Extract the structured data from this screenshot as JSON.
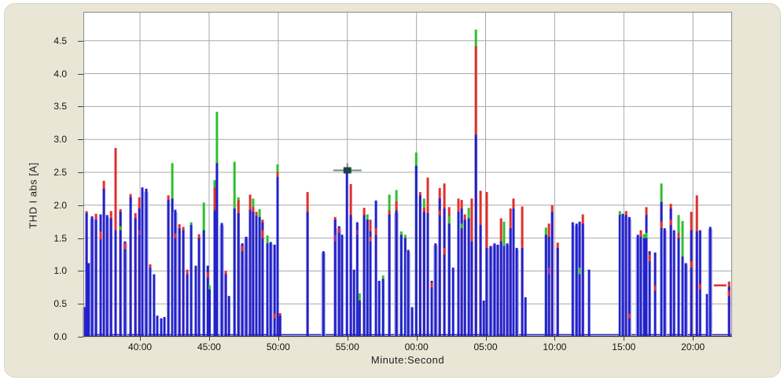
{
  "chart_data": {
    "type": "bar",
    "title": "",
    "xlabel": "Minute:Second",
    "ylabel": "THD I abs [A]",
    "ylim": [
      0,
      4.94
    ],
    "y_ticks": [
      "0.0",
      "0.5",
      "1.0",
      "1.5",
      "2.0",
      "2.5",
      "3.0",
      "3.5",
      "4.0",
      "4.5"
    ],
    "x_ticks": [
      "40:00",
      "45:00",
      "50:00",
      "55:00",
      "00:00",
      "05:00",
      "10:00",
      "15:00",
      "20:00"
    ],
    "x_range": [
      "35:54",
      "22:50"
    ],
    "grid": "both",
    "legend": "none",
    "series_colors": {
      "b": "#2121cd",
      "r": "#e12f2f",
      "g": "#2fbf2f",
      "p": "#8f2f9f",
      "halo": "#b0b0e6"
    },
    "baseline_value": 0.04,
    "cursor": {
      "t": "55:00",
      "v": 2.53
    },
    "marker": {
      "t": "21:58",
      "v": 0.78
    },
    "spikes": [
      {
        "t": "35:58",
        "b": 0.45
      },
      {
        "t": "36:08",
        "b": 1.88,
        "r": 1.91
      },
      {
        "t": "36:18",
        "b": 1.12
      },
      {
        "t": "36:32",
        "b": 1.83,
        "w": 2
      },
      {
        "t": "36:49",
        "b": 1.78,
        "r": 1.87
      },
      {
        "t": "37:09",
        "b": 1.86,
        "m": [
          [
            "r",
            1.48,
            1.6
          ]
        ]
      },
      {
        "t": "37:23",
        "b": 2.25,
        "r": 2.37
      },
      {
        "t": "37:37",
        "b": 1.85,
        "w": 2
      },
      {
        "t": "37:54",
        "b": 1.8,
        "r": 1.91
      },
      {
        "t": "38:14",
        "b": 1.62,
        "r": 2.87
      },
      {
        "t": "38:35",
        "b": 1.9,
        "r": 1.94,
        "m": [
          [
            "g",
            1.62,
            1.68
          ]
        ]
      },
      {
        "t": "38:55",
        "b": 1.45,
        "w": 2,
        "m": [
          [
            "r",
            1.33,
            1.42
          ]
        ]
      },
      {
        "t": "39:19",
        "b": 2.12,
        "r": 2.17
      },
      {
        "t": "39:40",
        "b": 1.8,
        "r": 1.88
      },
      {
        "t": "39:57",
        "b": 1.95,
        "r": 2.12,
        "m": [
          [
            "p",
            1.55,
            1.62
          ]
        ]
      },
      {
        "t": "40:10",
        "b": 2.27
      },
      {
        "t": "40:27",
        "b": 2.25,
        "w": 2
      },
      {
        "t": "40:44",
        "b": 1.05,
        "r": 1.1
      },
      {
        "t": "41:01",
        "b": 0.95
      },
      {
        "t": "41:15",
        "b": 0.32
      },
      {
        "t": "41:32",
        "b": 0.28
      },
      {
        "t": "41:46",
        "b": 0.3
      },
      {
        "t": "42:03",
        "b": 2.08,
        "r": 2.15
      },
      {
        "t": "42:20",
        "b": 2.1,
        "g": 2.64
      },
      {
        "t": "42:33",
        "b": 1.93,
        "w": 2,
        "m": [
          [
            "r",
            1.5,
            1.57
          ]
        ]
      },
      {
        "t": "42:51",
        "b": 1.65,
        "r": 1.71
      },
      {
        "t": "43:08",
        "b": 1.62,
        "r": 1.67
      },
      {
        "t": "43:25",
        "b": 0.95,
        "r": 1.02
      },
      {
        "t": "43:42",
        "b": 1.7,
        "g": 1.74
      },
      {
        "t": "44:02",
        "b": 1.08
      },
      {
        "t": "44:16",
        "b": 1.5,
        "r": 1.56
      },
      {
        "t": "44:37",
        "b": 1.62,
        "g": 2.04
      },
      {
        "t": "44:54",
        "b": 1.08,
        "m": [
          [
            "r",
            0.9,
            0.98
          ]
        ]
      },
      {
        "t": "45:02",
        "b": 0.72,
        "g": 0.78
      },
      {
        "t": "45:24",
        "b": 1.92,
        "r": 2.27,
        "g": 2.38
      },
      {
        "t": "45:34",
        "b": 2.64,
        "g": 3.42
      },
      {
        "t": "45:55",
        "b": 1.73,
        "w": 2
      },
      {
        "t": "46:12",
        "b": 0.95,
        "r": 1.0
      },
      {
        "t": "46:26",
        "b": 0.62
      },
      {
        "t": "46:50",
        "b": 1.95,
        "g": 2.66
      },
      {
        "t": "47:07",
        "b": 1.88,
        "r": 2.08,
        "g": 2.12
      },
      {
        "t": "47:24",
        "b": 1.42,
        "w": 2,
        "m": [
          [
            "r",
            1.3,
            1.38
          ]
        ]
      },
      {
        "t": "47:41",
        "b": 1.52,
        "w": 2
      },
      {
        "t": "47:58",
        "b": 1.93,
        "r": 2.16
      },
      {
        "t": "48:11",
        "b": 1.9,
        "r": 1.97,
        "g": 2.1
      },
      {
        "t": "48:25",
        "b": 1.84,
        "r": 1.9
      },
      {
        "t": "48:39",
        "b": 1.82,
        "g": 1.94
      },
      {
        "t": "48:52",
        "b": 1.74,
        "r": 1.78,
        "m": [
          [
            "r",
            1.5,
            1.62
          ]
        ]
      },
      {
        "t": "49:13",
        "b": 1.42,
        "g": 1.54
      },
      {
        "t": "49:27",
        "b": 1.44,
        "w": 2
      },
      {
        "t": "49:44",
        "b": 1.4,
        "m": [
          [
            "r",
            0.28,
            0.35
          ]
        ]
      },
      {
        "t": "49:57",
        "b": 2.43,
        "r": 2.5,
        "g": 2.62
      },
      {
        "t": "50:08",
        "b": 0.32,
        "r": 0.36
      },
      {
        "t": "52:07",
        "b": 1.9,
        "r": 2.2
      },
      {
        "t": "53:16",
        "b": 1.3,
        "w": 2
      },
      {
        "t": "54:07",
        "b": 1.78,
        "r": 1.82,
        "m": [
          [
            "p",
            1.45,
            1.55
          ]
        ]
      },
      {
        "t": "54:24",
        "b": 1.68,
        "w": 2,
        "m": [
          [
            "r",
            1.58,
            1.65
          ]
        ]
      },
      {
        "t": "54:37",
        "b": 1.55
      },
      {
        "t": "54:58",
        "b": 2.52
      },
      {
        "t": "55:15",
        "b": 1.85,
        "r": 2.32
      },
      {
        "t": "55:29",
        "b": 1.02
      },
      {
        "t": "55:43",
        "b": 1.74,
        "m": [
          [
            "p",
            1.55,
            1.62
          ]
        ]
      },
      {
        "t": "55:53",
        "b": 0.55,
        "g": 0.66
      },
      {
        "t": "56:13",
        "b": 1.85,
        "r": 1.96
      },
      {
        "t": "56:27",
        "b": 1.78,
        "g": 1.86
      },
      {
        "t": "56:40",
        "b": 1.6,
        "r": 1.78,
        "m": [
          [
            "r",
            1.45,
            1.52
          ]
        ]
      },
      {
        "t": "57:04",
        "b": 2.07,
        "m": [
          [
            "r",
            1.55,
            1.65
          ]
        ]
      },
      {
        "t": "57:18",
        "b": 0.85
      },
      {
        "t": "57:35",
        "b": 0.88,
        "g": 0.93
      },
      {
        "t": "58:02",
        "b": 1.86,
        "r": 1.92,
        "g": 2.16
      },
      {
        "t": "58:33",
        "b": 1.92,
        "r": 2.06,
        "g": 2.23,
        "w": 2
      },
      {
        "t": "58:54",
        "b": 1.55,
        "g": 1.6
      },
      {
        "t": "59:11",
        "b": 1.5,
        "g": 1.55
      },
      {
        "t": "59:24",
        "b": 1.32,
        "w": 2
      },
      {
        "t": "59:41",
        "b": 0.45
      },
      {
        "t": "59:59",
        "b": 2.6,
        "g": 2.8
      },
      {
        "t": "00:16",
        "b": 2.15,
        "r": 2.2
      },
      {
        "t": "00:33",
        "b": 1.9,
        "r": 1.96,
        "g": 2.1
      },
      {
        "t": "00:49",
        "b": 1.88,
        "r": 2.42
      },
      {
        "t": "01:06",
        "b": 0.85,
        "m": [
          [
            "r",
            0.75,
            0.82
          ]
        ]
      },
      {
        "t": "01:23",
        "b": 1.42,
        "w": 2
      },
      {
        "t": "01:41",
        "b": 2.1,
        "r": 2.26,
        "m": [
          [
            "r",
            1.85,
            1.92
          ]
        ]
      },
      {
        "t": "02:01",
        "b": 1.95,
        "r": 2.33,
        "m": [
          [
            "r",
            1.25,
            1.35
          ]
        ]
      },
      {
        "t": "02:22",
        "b": 1.72,
        "g": 1.84,
        "r": 1.97
      },
      {
        "t": "02:39",
        "b": 1.05
      },
      {
        "t": "03:02",
        "b": 1.9,
        "r": 2.1
      },
      {
        "t": "03:16",
        "b": 1.95,
        "r": 2.08,
        "m": [
          [
            "g",
            1.65,
            1.72
          ]
        ]
      },
      {
        "t": "03:30",
        "b": 1.78,
        "r": 1.86
      },
      {
        "t": "03:47",
        "b": 1.8,
        "g": 1.96
      },
      {
        "t": "04:00",
        "b": 1.45,
        "r": 2.1
      },
      {
        "t": "04:18",
        "b": 3.07,
        "r": 4.42,
        "g": 4.67
      },
      {
        "t": "04:38",
        "b": 1.7,
        "r": 2.22
      },
      {
        "t": "04:52",
        "b": 0.55
      },
      {
        "t": "05:05",
        "b": 1.35,
        "r": 2.2
      },
      {
        "t": "05:22",
        "b": 1.38,
        "w": 2
      },
      {
        "t": "05:39",
        "b": 1.42,
        "w": 2
      },
      {
        "t": "05:53",
        "b": 1.4
      },
      {
        "t": "06:07",
        "b": 1.45,
        "r": 1.8
      },
      {
        "t": "06:20",
        "b": 1.38,
        "g": 1.75
      },
      {
        "t": "06:34",
        "b": 1.42,
        "w": 2
      },
      {
        "t": "06:48",
        "b": 1.65,
        "r": 1.95
      },
      {
        "t": "07:01",
        "b": 1.95,
        "r": 2.1
      },
      {
        "t": "07:15",
        "b": 1.35,
        "w": 2
      },
      {
        "t": "07:39",
        "b": 1.35,
        "r": 1.98,
        "m": [
          [
            "r",
            1.4,
            1.48
          ]
        ]
      },
      {
        "t": "07:53",
        "b": 0.6
      },
      {
        "t": "09:22",
        "b": 1.55,
        "g": 1.66
      },
      {
        "t": "09:35",
        "b": 1.52,
        "r": 1.72,
        "m": [
          [
            "p",
            0.95,
            1.05
          ]
        ]
      },
      {
        "t": "09:49",
        "b": 1.9,
        "r": 2.0
      },
      {
        "t": "10:13",
        "b": 1.35,
        "r": 1.43
      },
      {
        "t": "11:18",
        "b": 1.74
      },
      {
        "t": "11:35",
        "b": 1.72,
        "w": 2
      },
      {
        "t": "11:48",
        "b": 1.75,
        "m": [
          [
            "g",
            0.95,
            1.05
          ]
        ]
      },
      {
        "t": "12:02",
        "b": 1.72,
        "r": 1.86
      },
      {
        "t": "12:29",
        "b": 1.02
      },
      {
        "t": "14:43",
        "b": 1.85,
        "g": 1.91
      },
      {
        "t": "14:56",
        "b": 1.87,
        "w": 2
      },
      {
        "t": "15:10",
        "b": 1.85,
        "r": 1.91
      },
      {
        "t": "15:24",
        "b": 1.82,
        "w": 2,
        "m": [
          [
            "r",
            0.28,
            0.35
          ]
        ]
      },
      {
        "t": "16:01",
        "b": 1.55,
        "w": 2
      },
      {
        "t": "16:14",
        "b": 1.52,
        "r": 1.62
      },
      {
        "t": "16:28",
        "b": 1.5,
        "g": 1.56
      },
      {
        "t": "16:38",
        "b": 1.85,
        "r": 1.97,
        "m": [
          [
            "g",
            1.5,
            1.58
          ]
        ]
      },
      {
        "t": "16:52",
        "b": 1.3,
        "m": [
          [
            "r",
            1.15,
            1.25
          ]
        ]
      },
      {
        "t": "17:16",
        "b": 1.28,
        "m": [
          [
            "r",
            0.7,
            0.78
          ]
        ]
      },
      {
        "t": "17:43",
        "b": 2.05,
        "g": 2.33,
        "m": [
          [
            "r",
            1.65,
            1.75
          ]
        ]
      },
      {
        "t": "17:57",
        "b": 1.65,
        "w": 2
      },
      {
        "t": "18:24",
        "b": 1.95,
        "r": 2.02,
        "m": [
          [
            "r",
            1.7,
            1.78
          ]
        ]
      },
      {
        "t": "18:38",
        "b": 1.62
      },
      {
        "t": "18:58",
        "b": 1.5,
        "r": 1.58,
        "g": 1.85
      },
      {
        "t": "19:15",
        "b": 1.22,
        "g": 1.76
      },
      {
        "t": "19:29",
        "b": 1.12,
        "w": 2
      },
      {
        "t": "19:53",
        "b": 1.62,
        "r": 1.9,
        "m": [
          [
            "r",
            1.05,
            1.15
          ]
        ]
      },
      {
        "t": "20:17",
        "b": 1.6,
        "r": 2.15
      },
      {
        "t": "20:31",
        "b": 1.62,
        "m": [
          [
            "r",
            0.72,
            0.8
          ]
        ]
      },
      {
        "t": "21:01",
        "b": 0.65
      },
      {
        "t": "21:15",
        "b": 1.67,
        "w": 2
      },
      {
        "t": "22:37",
        "b": 0.76,
        "r": 0.84,
        "m": [
          [
            "r",
            0.62,
            0.7
          ]
        ]
      }
    ]
  },
  "colors": {
    "panel_bg": "#e9e6d5",
    "plot_bg": "#ffffff",
    "grid": "#a8a8a8",
    "frame": "#8a8a8a",
    "text": "#141414",
    "cursor_line": "#6b8e8e",
    "cursor_center": "#1c4444"
  }
}
